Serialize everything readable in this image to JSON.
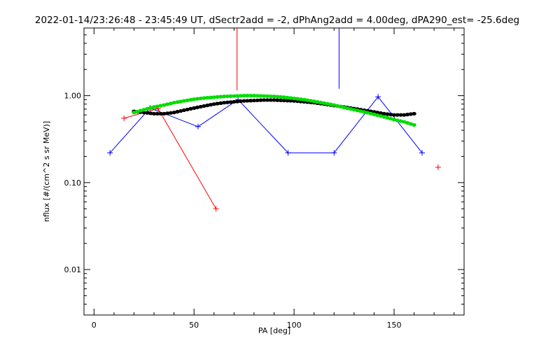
{
  "chart_data": {
    "type": "scatter",
    "title": "2022-01-14/23:26:48 - 23:45:49 UT, dSectr2add = -2, dPhAng2add = 4.00deg, dPA290_est= -25.6deg",
    "xlabel": "PA [deg]",
    "ylabel": "nflux [#/(cm^2 s sr MeV)]",
    "xlim": [
      -5,
      185
    ],
    "ylim": [
      0.003,
      6.0
    ],
    "yscale": "log",
    "grid": false,
    "x_ticks": [
      {
        "value": 0,
        "label": "0"
      },
      {
        "value": 50,
        "label": "50"
      },
      {
        "value": 100,
        "label": "100"
      },
      {
        "value": 150,
        "label": "150"
      }
    ],
    "y_ticks": [
      {
        "value": 0.01,
        "label": "0.01"
      },
      {
        "value": 0.1,
        "label": "0.10"
      },
      {
        "value": 1.0,
        "label": "1.00"
      }
    ],
    "series": [
      {
        "style": "line-plus",
        "color": "#0000ff",
        "x": [
          8,
          28,
          52,
          72,
          97,
          120,
          142,
          164
        ],
        "y": [
          0.22,
          0.72,
          0.44,
          0.9,
          0.22,
          0.22,
          0.97,
          0.22
        ]
      },
      {
        "style": "line-plus",
        "color": "#ff0000",
        "x": [
          15,
          32,
          61
        ],
        "y": [
          0.55,
          0.71,
          0.05
        ]
      },
      {
        "style": "plus",
        "color": "#ff0000",
        "x": [
          172
        ],
        "y": [
          0.15
        ]
      },
      {
        "style": "dots",
        "color": "#000000",
        "x": [
          20,
          25,
          30,
          35,
          40,
          45,
          50,
          55,
          60,
          65,
          70,
          75,
          80,
          85,
          90,
          95,
          100,
          105,
          110,
          115,
          120,
          125,
          130,
          135,
          140,
          145,
          150,
          155,
          160
        ],
        "y": [
          0.66,
          0.64,
          0.62,
          0.62,
          0.64,
          0.68,
          0.72,
          0.76,
          0.8,
          0.83,
          0.85,
          0.87,
          0.88,
          0.89,
          0.89,
          0.88,
          0.87,
          0.85,
          0.83,
          0.8,
          0.77,
          0.74,
          0.71,
          0.68,
          0.65,
          0.62,
          0.6,
          0.6,
          0.62
        ]
      },
      {
        "style": "dots",
        "color": "#00dd00",
        "x": [
          20,
          25,
          30,
          35,
          40,
          45,
          50,
          55,
          60,
          65,
          70,
          75,
          80,
          85,
          90,
          95,
          100,
          105,
          110,
          115,
          120,
          125,
          130,
          135,
          140,
          145,
          150,
          155,
          160
        ],
        "y": [
          0.64,
          0.69,
          0.74,
          0.78,
          0.83,
          0.87,
          0.91,
          0.94,
          0.96,
          0.98,
          0.99,
          1.0,
          1.0,
          0.99,
          0.98,
          0.96,
          0.93,
          0.9,
          0.86,
          0.82,
          0.78,
          0.73,
          0.69,
          0.65,
          0.61,
          0.57,
          0.53,
          0.5,
          0.46
        ]
      }
    ],
    "annotations": [
      {
        "type": "vline",
        "color": "#ff0000",
        "x": 71.5,
        "y_from": 1.15,
        "y_to": 6.0
      },
      {
        "type": "vline",
        "color": "#0000ff",
        "x": 122.5,
        "y_from": 1.2,
        "y_to": 6.0
      }
    ]
  }
}
